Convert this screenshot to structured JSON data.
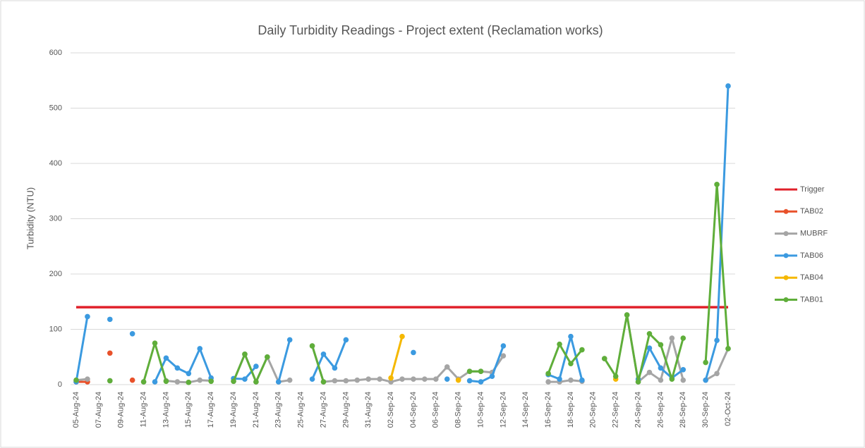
{
  "chart_data": {
    "type": "line",
    "title": "Daily Turbidity Readings - Project extent (Reclamation works)",
    "y_label": "Turbidity (NTU)",
    "categories": [
      "05-Aug-24",
      null,
      "07-Aug-24",
      null,
      "09-Aug-24",
      null,
      "11-Aug-24",
      null,
      "13-Aug-24",
      null,
      "15-Aug-24",
      null,
      "17-Aug-24",
      null,
      "19-Aug-24",
      null,
      "21-Aug-24",
      null,
      "23-Aug-24",
      null,
      "25-Aug-24",
      null,
      "27-Aug-24",
      null,
      "29-Aug-24",
      null,
      "31-Aug-24",
      null,
      "02-Sep-24",
      null,
      "04-Sep-24",
      null,
      "06-Sep-24",
      null,
      "08-Sep-24",
      null,
      "10-Sep-24",
      null,
      "12-Sep-24",
      null,
      "14-Sep-24",
      null,
      "16-Sep-24",
      null,
      "18-Sep-24",
      null,
      "20-Sep-24",
      null,
      "22-Sep-24",
      null,
      "24-Sep-24",
      null,
      "26-Sep-24",
      null,
      "28-Sep-24",
      null,
      "30-Sep-24",
      null,
      "02-Oct-24"
    ],
    "ylim": [
      0,
      600
    ],
    "yticks": [
      0,
      100,
      200,
      300,
      400,
      500,
      600
    ],
    "grid": true,
    "legend": "right",
    "series": [
      {
        "name": "Trigger",
        "color": "#e0202a",
        "markers": false,
        "values": [
          140,
          140,
          140,
          140,
          140,
          140,
          140,
          140,
          140,
          140,
          140,
          140,
          140,
          140,
          140,
          140,
          140,
          140,
          140,
          140,
          140,
          140,
          140,
          140,
          140,
          140,
          140,
          140,
          140,
          140,
          140,
          140,
          140,
          140,
          140,
          140,
          140,
          140,
          140,
          140,
          140,
          140,
          140,
          140,
          140,
          140,
          140,
          140,
          140,
          140,
          140,
          140,
          140,
          140,
          140,
          140,
          140,
          140,
          140
        ]
      },
      {
        "name": "TAB02",
        "color": "#e8512a",
        "markers": true,
        "values": [
          5,
          5,
          null,
          57,
          null,
          8,
          null,
          null,
          null,
          null,
          null,
          null,
          null,
          null,
          null,
          null,
          null,
          null,
          null,
          null,
          null,
          null,
          null,
          null,
          null,
          null,
          null,
          null,
          null,
          null,
          null,
          null,
          null,
          null,
          null,
          null,
          null,
          null,
          null,
          null,
          null,
          null,
          null,
          null,
          null,
          null,
          null,
          null,
          null,
          null,
          null,
          null,
          null,
          null,
          null,
          null,
          null,
          null,
          null
        ]
      },
      {
        "name": "MUBRF",
        "color": "#a5a5a5",
        "markers": true,
        "values": [
          8,
          10,
          null,
          7,
          null,
          null,
          5,
          null,
          7,
          5,
          4,
          8,
          7,
          null,
          6,
          55,
          5,
          50,
          5,
          8,
          null,
          70,
          5,
          7,
          7,
          8,
          10,
          10,
          5,
          10,
          10,
          10,
          10,
          32,
          10,
          24,
          24,
          22,
          52,
          null,
          null,
          null,
          5,
          5,
          8,
          6,
          null,
          47,
          null,
          126,
          5,
          22,
          8,
          84,
          8,
          null,
          8,
          20,
          65
        ]
      },
      {
        "name": "TAB06",
        "color": "#3b9ae0",
        "markers": true,
        "values": [
          5,
          123,
          null,
          118,
          null,
          92,
          null,
          5,
          48,
          30,
          20,
          65,
          12,
          null,
          11,
          10,
          33,
          null,
          5,
          81,
          null,
          10,
          55,
          30,
          81,
          null,
          null,
          null,
          null,
          null,
          58,
          null,
          null,
          10,
          null,
          7,
          5,
          15,
          70,
          null,
          null,
          null,
          18,
          10,
          87,
          8,
          null,
          null,
          null,
          null,
          10,
          66,
          30,
          12,
          27,
          null,
          8,
          80,
          540
        ]
      },
      {
        "name": "TAB04",
        "color": "#f5b800",
        "markers": true,
        "values": [
          null,
          null,
          null,
          null,
          null,
          null,
          null,
          null,
          null,
          null,
          null,
          null,
          null,
          null,
          null,
          null,
          null,
          null,
          null,
          null,
          null,
          null,
          null,
          null,
          null,
          null,
          null,
          null,
          12,
          87,
          null,
          null,
          null,
          null,
          8,
          null,
          null,
          null,
          null,
          null,
          null,
          null,
          null,
          null,
          null,
          null,
          null,
          null,
          10,
          null,
          null,
          null,
          null,
          null,
          null,
          null,
          null,
          null,
          null
        ]
      },
      {
        "name": "TAB01",
        "color": "#5fae3a",
        "markers": true,
        "values": [
          8,
          null,
          null,
          7,
          null,
          null,
          5,
          75,
          6,
          null,
          4,
          null,
          6,
          null,
          6,
          55,
          5,
          50,
          null,
          null,
          null,
          70,
          5,
          null,
          null,
          null,
          null,
          null,
          null,
          null,
          null,
          null,
          null,
          null,
          null,
          24,
          24,
          null,
          null,
          null,
          null,
          null,
          20,
          73,
          38,
          63,
          null,
          47,
          15,
          126,
          5,
          92,
          72,
          10,
          84,
          null,
          40,
          362,
          65
        ]
      }
    ]
  }
}
